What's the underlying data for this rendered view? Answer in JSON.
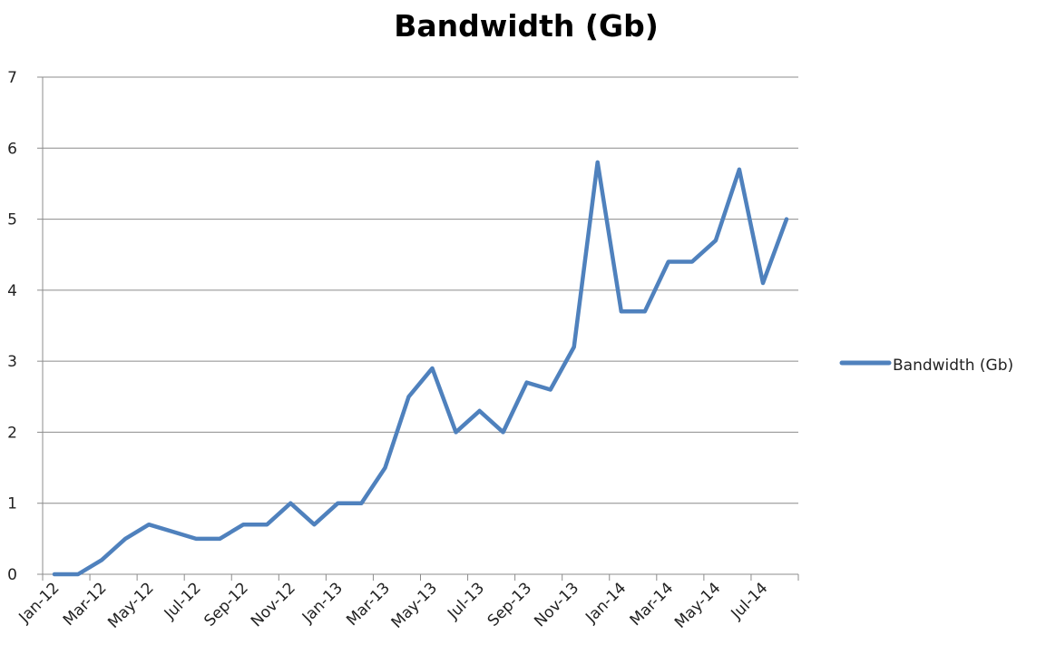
{
  "chart_data": {
    "type": "line",
    "title": "Bandwidth (Gb)",
    "xlabel": "",
    "ylabel": "",
    "ylim": [
      0,
      7
    ],
    "yticks": [
      0,
      1,
      2,
      3,
      4,
      5,
      6,
      7
    ],
    "grid": "horizontal",
    "legend_position": "right",
    "x": [
      "Jan-12",
      "Feb-12",
      "Mar-12",
      "Apr-12",
      "May-12",
      "Jun-12",
      "Jul-12",
      "Aug-12",
      "Sep-12",
      "Oct-12",
      "Nov-12",
      "Dec-12",
      "Jan-13",
      "Feb-13",
      "Mar-13",
      "Apr-13",
      "May-13",
      "Jun-13",
      "Jul-13",
      "Aug-13",
      "Sep-13",
      "Oct-13",
      "Nov-13",
      "Dec-13",
      "Jan-14",
      "Feb-14",
      "Mar-14",
      "Apr-14",
      "May-14",
      "Jun-14",
      "Jul-14",
      "Aug-14"
    ],
    "x_tick_labels": [
      "Jan-12",
      "Mar-12",
      "May-12",
      "Jul-12",
      "Sep-12",
      "Nov-12",
      "Jan-13",
      "Mar-13",
      "May-13",
      "Jul-13",
      "Sep-13",
      "Nov-13",
      "Jan-14",
      "Mar-14",
      "May-14",
      "Jul-14"
    ],
    "series": [
      {
        "name": "Bandwidth (Gb)",
        "color": "#4F81BD",
        "values": [
          0,
          0,
          0.2,
          0.5,
          0.7,
          0.6,
          0.5,
          0.5,
          0.7,
          0.7,
          1.0,
          0.7,
          1.0,
          1.0,
          1.5,
          2.5,
          2.9,
          2.0,
          2.3,
          2.0,
          2.7,
          2.6,
          3.2,
          5.8,
          3.7,
          3.7,
          4.4,
          4.4,
          4.7,
          5.7,
          4.1,
          5.0
        ]
      }
    ]
  }
}
